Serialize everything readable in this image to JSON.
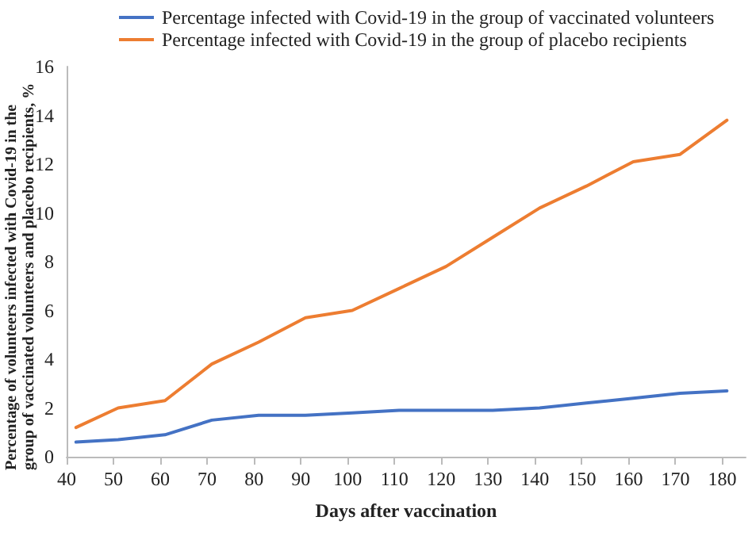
{
  "chart_data": {
    "type": "line",
    "xlabel": "Days after vaccination",
    "ylabel": "Percentage of volunteers infected with Covid-19 in the group of vaccinated volunteers and placebo recipients, %",
    "x": [
      42,
      51,
      61,
      71,
      81,
      91,
      101,
      111,
      121,
      131,
      141,
      151,
      161,
      171,
      181
    ],
    "series": [
      {
        "name": "Percentage infected with Covid-19 in the group of vaccinated volunteers",
        "color": "#4472c4",
        "values": [
          0.6,
          0.7,
          0.9,
          1.5,
          1.7,
          1.7,
          1.8,
          1.9,
          1.9,
          1.9,
          2.0,
          2.2,
          2.4,
          2.6,
          2.7
        ]
      },
      {
        "name": "Percentage infected with Covid-19 in the group of placebo recipients",
        "color": "#ed7d31",
        "values": [
          1.2,
          2.0,
          2.3,
          3.8,
          4.7,
          5.7,
          6.0,
          6.9,
          7.8,
          9.0,
          10.2,
          11.1,
          12.1,
          12.4,
          13.8
        ]
      }
    ],
    "xlim": [
      40,
      185
    ],
    "xticks": [
      40,
      50,
      60,
      70,
      80,
      90,
      100,
      110,
      120,
      130,
      140,
      150,
      160,
      170,
      180
    ],
    "ylim": [
      0,
      16
    ],
    "yticks": [
      0,
      2,
      4,
      6,
      8,
      10,
      12,
      14,
      16
    ],
    "grid": false,
    "legend": "top left"
  }
}
